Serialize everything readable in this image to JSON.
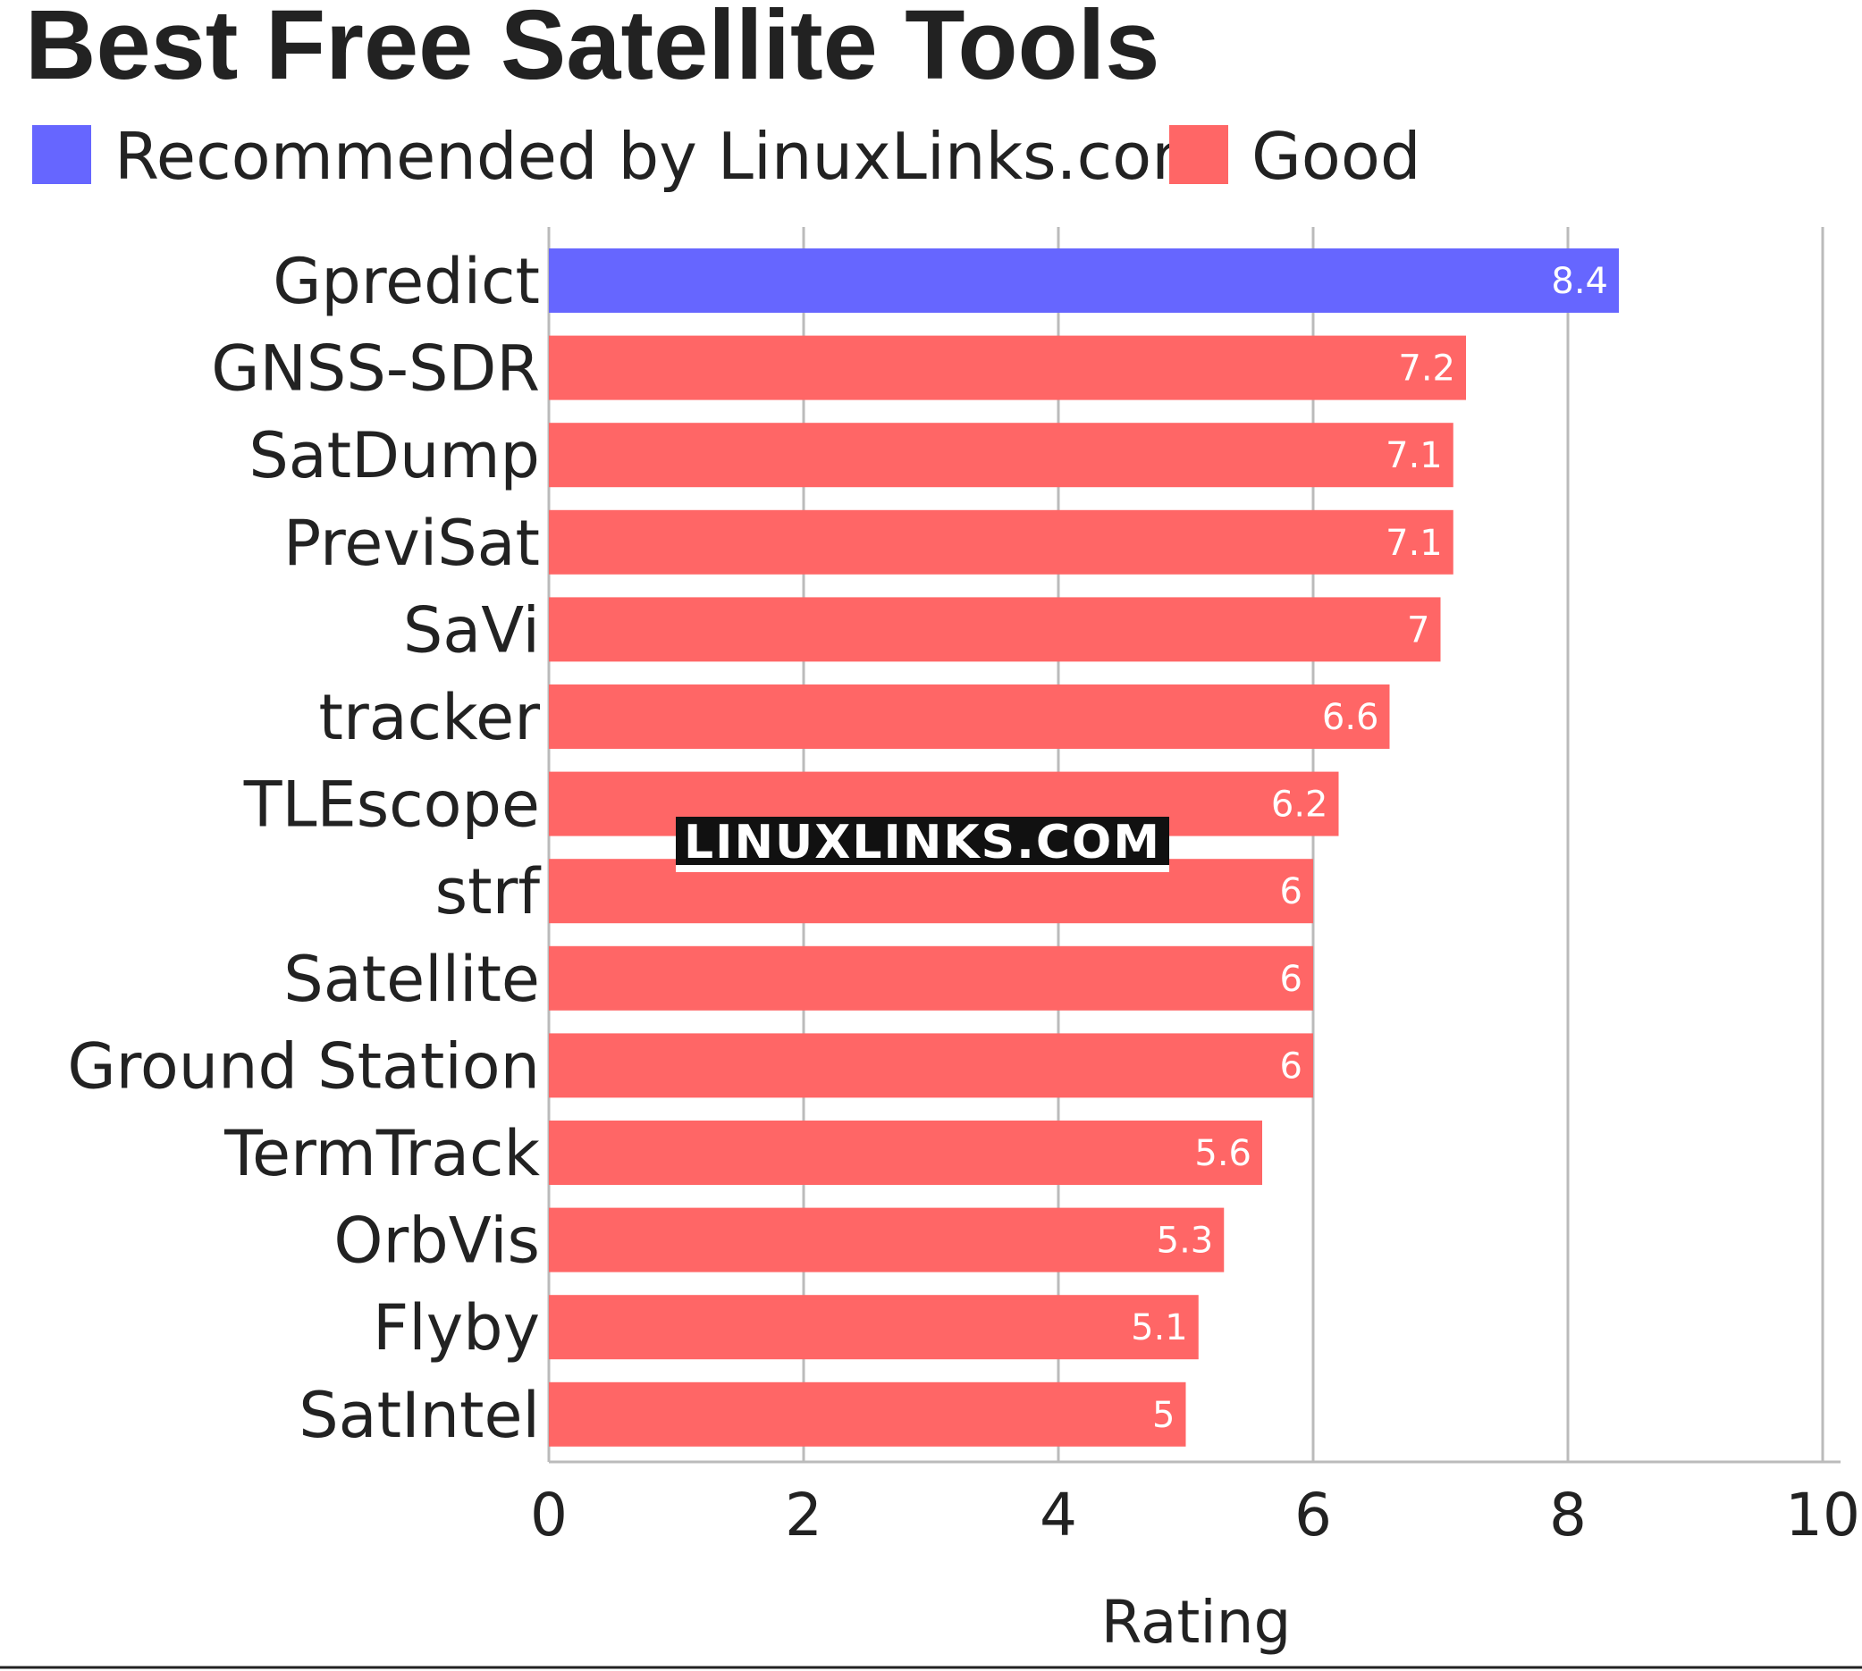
{
  "chart_data": {
    "type": "bar",
    "orientation": "horizontal",
    "title": "Best Free Satellite Tools",
    "xlabel": "Rating",
    "ylabel": "",
    "xlim": [
      0,
      10
    ],
    "ticks": [
      0,
      2,
      4,
      6,
      8,
      10
    ],
    "tick_labels": [
      "0",
      "2",
      "4",
      "6",
      "8",
      "10"
    ],
    "grid": true,
    "legend_position": "top-left",
    "legend": [
      {
        "label": "Recommended by LinuxLinks.com",
        "color": "#6666ff"
      },
      {
        "label": "Good",
        "color": "#ff6666"
      }
    ],
    "categories": [
      "Gpredict",
      "GNSS-SDR",
      "SatDump",
      "PreviSat",
      "SaVi",
      "tracker",
      "TLEscope",
      "strf",
      "Satellite",
      "Ground Station",
      "TermTrack",
      "OrbVis",
      "Flyby",
      "SatIntel"
    ],
    "values": [
      8.4,
      7.2,
      7.1,
      7.1,
      7,
      6.6,
      6.2,
      6,
      6,
      6,
      5.6,
      5.3,
      5.1,
      5
    ],
    "value_labels": [
      "8.4",
      "7.2",
      "7.1",
      "7.1",
      "7",
      "6.6",
      "6.2",
      "6",
      "6",
      "6",
      "5.6",
      "5.3",
      "5.1",
      "5"
    ],
    "groups": [
      "Recommended by LinuxLinks.com",
      "Good",
      "Good",
      "Good",
      "Good",
      "Good",
      "Good",
      "Good",
      "Good",
      "Good",
      "Good",
      "Good",
      "Good",
      "Good"
    ]
  },
  "watermark": "LINUXLINKS.COM",
  "colors": {
    "recommended": "#6666ff",
    "good": "#ff6666",
    "grid": "#bbbbbb",
    "text": "#222222"
  }
}
